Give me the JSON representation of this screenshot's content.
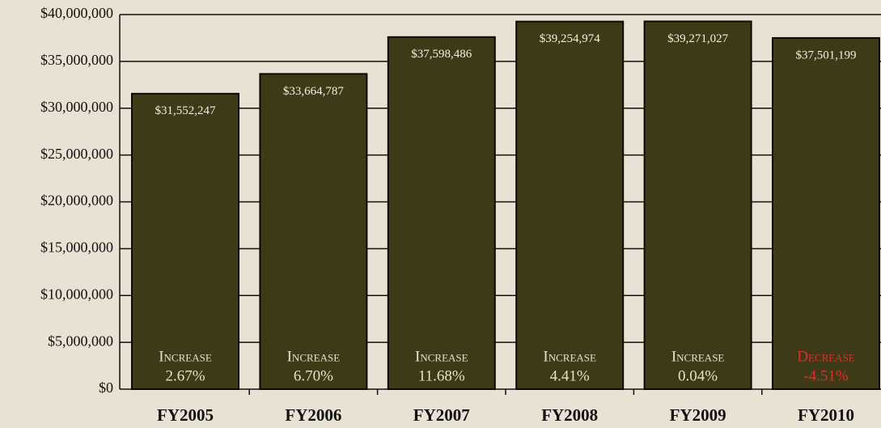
{
  "chart_data": {
    "type": "bar",
    "categories": [
      "FY2005",
      "FY2006",
      "FY2007",
      "FY2008",
      "FY2009",
      "FY2010"
    ],
    "values": [
      31552247,
      33664787,
      37598486,
      39254974,
      39271027,
      37501199
    ],
    "value_labels": [
      "$31,552,247",
      "$33,664,787",
      "$37,598,486",
      "$39,254,974",
      "$39,271,027",
      "$37,501,199"
    ],
    "annotations": [
      {
        "label": "Increase",
        "change": "2.67%",
        "color": "#e6e0cc"
      },
      {
        "label": "Increase",
        "change": "6.70%",
        "color": "#e6e0cc"
      },
      {
        "label": "Increase",
        "change": "11.68%",
        "color": "#e6e0cc"
      },
      {
        "label": "Increase",
        "change": "4.41%",
        "color": "#e6e0cc"
      },
      {
        "label": "Increase",
        "change": "0.04%",
        "color": "#e6e0cc"
      },
      {
        "label": "Decrease",
        "change": "-4.51%",
        "color": "#d9302c"
      }
    ],
    "color": "#3c3a17",
    "ylim": [
      0,
      40000000
    ],
    "yticks": [
      {
        "value": 0,
        "label": "$0"
      },
      {
        "value": 5000000,
        "label": "$5,000,000"
      },
      {
        "value": 10000000,
        "label": "$10,000,000"
      },
      {
        "value": 15000000,
        "label": "$15,000,000"
      },
      {
        "value": 20000000,
        "label": "$20,000,000"
      },
      {
        "value": 25000000,
        "label": "$25,000,000"
      },
      {
        "value": 30000000,
        "label": "$30,000,000"
      },
      {
        "value": 35000000,
        "label": "$35,000,000"
      },
      {
        "value": 40000000,
        "label": "$40,000,000"
      }
    ],
    "grid": true
  }
}
